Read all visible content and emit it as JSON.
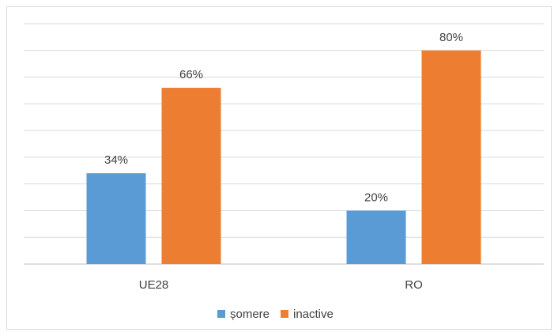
{
  "chart_data": {
    "type": "bar",
    "categories": [
      "UE28",
      "RO"
    ],
    "series": [
      {
        "name": "șomere",
        "values": [
          34,
          20
        ],
        "color": "#5b9bd5"
      },
      {
        "name": "inactive",
        "values": [
          66,
          80
        ],
        "color": "#ed7d31"
      }
    ],
    "value_suffix": "%",
    "ylim": [
      0,
      90
    ],
    "grid": true,
    "legend_position": "bottom",
    "title": "",
    "xlabel": "",
    "ylabel": ""
  },
  "colors": {
    "gridline": "#d9d9d9",
    "axis": "#bfbfbf",
    "text": "#404040"
  }
}
